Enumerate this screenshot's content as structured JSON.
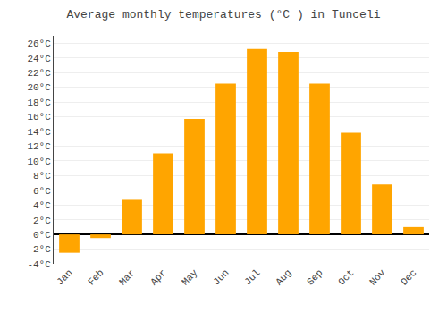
{
  "chart_data": {
    "type": "bar",
    "title": "Average monthly temperatures (°C ) in Tunceli",
    "categories": [
      "Jan",
      "Feb",
      "Mar",
      "Apr",
      "May",
      "Jun",
      "Jul",
      "Aug",
      "Sep",
      "Oct",
      "Nov",
      "Dec"
    ],
    "values": [
      -2.5,
      -0.5,
      4.7,
      11.0,
      15.7,
      20.5,
      25.2,
      24.8,
      20.5,
      13.8,
      6.8,
      1.0
    ],
    "color": "#FFA500",
    "ylim": [
      -4,
      27
    ],
    "yticks": [
      {
        "value": -4,
        "label": "-4°C"
      },
      {
        "value": -2,
        "label": "-2°C"
      },
      {
        "value": 0,
        "label": "0°C"
      },
      {
        "value": 2,
        "label": "2°C"
      },
      {
        "value": 4,
        "label": "4°C"
      },
      {
        "value": 6,
        "label": "6°C"
      },
      {
        "value": 8,
        "label": "8°C"
      },
      {
        "value": 10,
        "label": "10°C"
      },
      {
        "value": 12,
        "label": "12°C"
      },
      {
        "value": 14,
        "label": "14°C"
      },
      {
        "value": 16,
        "label": "16°C"
      },
      {
        "value": 18,
        "label": "18°C"
      },
      {
        "value": 20,
        "label": "20°C"
      },
      {
        "value": 22,
        "label": "22°C"
      },
      {
        "value": 24,
        "label": "24°C"
      },
      {
        "value": 26,
        "label": "26°C"
      }
    ],
    "grid": true
  }
}
